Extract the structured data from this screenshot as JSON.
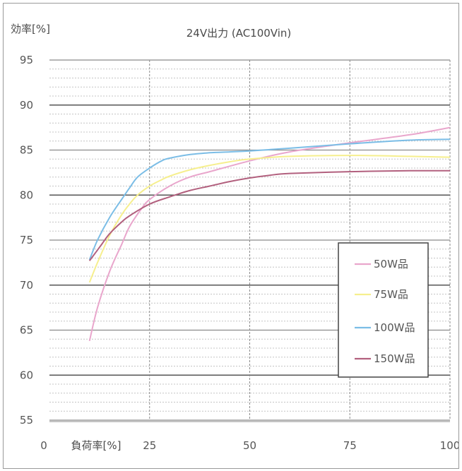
{
  "chart_data": {
    "type": "line",
    "title": "24V出力 (AC100Vin)",
    "xlabel": "負荷率[%]",
    "ylabel": "効率[%]",
    "xlim": [
      0,
      100
    ],
    "ylim": [
      55,
      95
    ],
    "x_ticks": [
      0,
      25,
      50,
      75,
      100
    ],
    "y_ticks": [
      55,
      60,
      65,
      70,
      75,
      80,
      85,
      90,
      95
    ],
    "grid": true,
    "legend_position": "lower-right",
    "series": [
      {
        "name": "50W品",
        "color": "#e9a6cc",
        "x": [
          10,
          12,
          15,
          18,
          20,
          23,
          25,
          30,
          35,
          40,
          50,
          60,
          75,
          90,
          100
        ],
        "y": [
          63.8,
          67.5,
          71.5,
          74.5,
          76.5,
          78.5,
          79.5,
          81,
          82,
          82.6,
          83.8,
          84.8,
          85.8,
          86.7,
          87.5
        ]
      },
      {
        "name": "75W品",
        "color": "#f6ef8e",
        "x": [
          10,
          12,
          15,
          18,
          20,
          22,
          25,
          28,
          30,
          35,
          40,
          45,
          50,
          60,
          75,
          90,
          100
        ],
        "y": [
          70.3,
          72.5,
          75.5,
          77.8,
          79,
          80,
          81,
          81.7,
          82.1,
          82.8,
          83.3,
          83.7,
          84,
          84.3,
          84.4,
          84.3,
          84.2
        ]
      },
      {
        "name": "100W品",
        "color": "#7bbde6",
        "x": [
          10,
          12,
          15,
          18,
          20,
          22,
          25,
          28,
          30,
          35,
          40,
          45,
          50,
          60,
          75,
          90,
          100
        ],
        "y": [
          72.8,
          75,
          77.5,
          79.5,
          80.8,
          82,
          83,
          83.8,
          84.1,
          84.5,
          84.7,
          84.8,
          84.9,
          85.2,
          85.7,
          86.1,
          86.2
        ]
      },
      {
        "name": "150W品",
        "color": "#b2607e",
        "x": [
          10,
          13,
          15,
          18,
          20,
          25,
          30,
          35,
          40,
          45,
          50,
          55,
          60,
          75,
          90,
          100
        ],
        "y": [
          72.7,
          74.5,
          75.7,
          77,
          77.7,
          79,
          79.8,
          80.5,
          81,
          81.5,
          81.9,
          82.2,
          82.4,
          82.6,
          82.7,
          82.7
        ]
      }
    ]
  }
}
